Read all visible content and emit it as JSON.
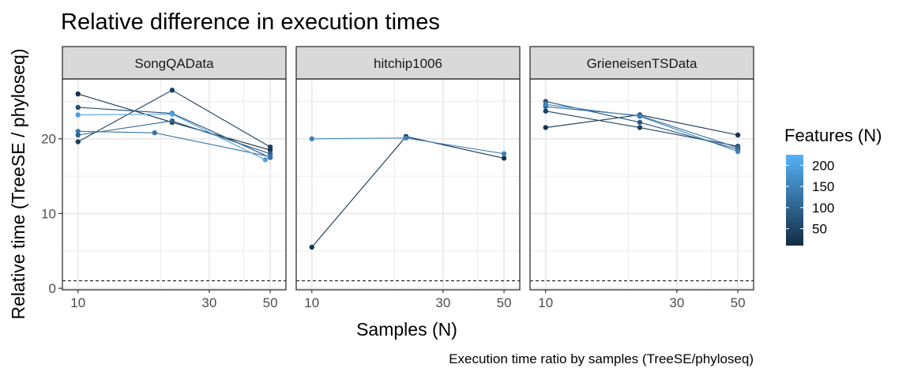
{
  "chart_data": {
    "type": "line",
    "title": "Relative difference in execution times",
    "caption": "Execution time ratio by samples (TreeSE/phyloseq)",
    "xlabel": "Samples (N)",
    "ylabel": "Relative time (TreeSE / phyloseq)",
    "x_scale": "log",
    "x_ticks": [
      10,
      30,
      50
    ],
    "y_ticks": [
      0,
      10,
      20
    ],
    "xlim": [
      9.5,
      52
    ],
    "ylim": [
      -0.2,
      28
    ],
    "reference_line": {
      "y": 1,
      "style": "dashed"
    },
    "grid": true,
    "legend": {
      "title": "Features (N)",
      "position": "right",
      "type": "colorbar",
      "ticks": [
        50,
        100,
        150,
        200
      ],
      "range": [
        10,
        225
      ],
      "color_low": "#132B43",
      "color_high": "#56B1F7"
    },
    "panels": [
      {
        "name": "SongQAData",
        "series": [
          {
            "features": 20,
            "points": [
              [
                10,
                26.0
              ],
              [
                22,
                22.2
              ],
              [
                50,
                18.5
              ]
            ]
          },
          {
            "features": 40,
            "points": [
              [
                10,
                19.6
              ],
              [
                22,
                26.5
              ],
              [
                50,
                18.9
              ]
            ]
          },
          {
            "features": 70,
            "points": [
              [
                10,
                24.2
              ],
              [
                22,
                23.4
              ],
              [
                50,
                17.5
              ]
            ]
          },
          {
            "features": 100,
            "points": [
              [
                10,
                20.5
              ],
              [
                22,
                22.4
              ],
              [
                50,
                18.0
              ]
            ]
          },
          {
            "features": 130,
            "points": [
              [
                10,
                21.0
              ],
              [
                19,
                20.8
              ],
              [
                50,
                17.6
              ]
            ]
          },
          {
            "features": 200,
            "points": [
              [
                10,
                23.2
              ],
              [
                22,
                23.3
              ],
              [
                48,
                17.2
              ]
            ]
          }
        ]
      },
      {
        "name": "hitchip1006",
        "series": [
          {
            "features": 25,
            "points": [
              [
                10,
                5.5
              ],
              [
                22,
                20.3
              ],
              [
                50,
                17.4
              ]
            ]
          },
          {
            "features": 150,
            "points": [
              [
                10,
                20.0
              ],
              [
                22,
                20.1
              ],
              [
                50,
                18.0
              ]
            ]
          }
        ]
      },
      {
        "name": "GrieneisenTSData",
        "series": [
          {
            "features": 25,
            "points": [
              [
                10,
                21.5
              ],
              [
                22,
                23.2
              ],
              [
                50,
                20.5
              ]
            ]
          },
          {
            "features": 50,
            "points": [
              [
                10,
                23.7
              ],
              [
                22,
                21.5
              ],
              [
                50,
                19.0
              ]
            ]
          },
          {
            "features": 80,
            "points": [
              [
                10,
                25.0
              ],
              [
                22,
                22.2
              ],
              [
                50,
                18.6
              ]
            ]
          },
          {
            "features": 110,
            "points": [
              [
                10,
                24.3
              ],
              [
                22,
                23.1
              ],
              [
                50,
                18.8
              ]
            ]
          },
          {
            "features": 150,
            "points": [
              [
                10,
                24.6
              ],
              [
                22,
                23.0
              ],
              [
                50,
                18.3
              ]
            ]
          }
        ]
      }
    ]
  }
}
